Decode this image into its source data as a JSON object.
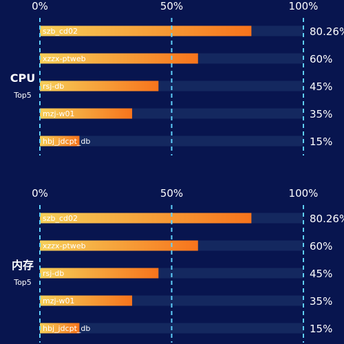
{
  "colors": {
    "background": "#08154f",
    "track": "#14285f",
    "bar_start": "#f6cf59",
    "bar_end": "#f7741c",
    "gridline": "#5fd1ff",
    "text": "#ffffff"
  },
  "chart_data": [
    {
      "type": "bar",
      "orientation": "horizontal",
      "side_title": "CPU",
      "side_subtitle": "Top5",
      "xlim": [
        0,
        100
      ],
      "x_ticks": [
        "0%",
        "50%",
        "100%"
      ],
      "categories": [
        "szb_cd02",
        "xzzx-ptweb",
        "rsj-db",
        "mzj-w01",
        "hbj_jdcpt_db"
      ],
      "values": [
        80.26,
        60,
        45,
        35,
        15
      ],
      "value_labels": [
        "80.26%",
        "60%",
        "45%",
        "35%",
        "15%"
      ],
      "grid": "vertical dashed lines at 0%, 50%, 100%",
      "legend": "none"
    },
    {
      "type": "bar",
      "orientation": "horizontal",
      "side_title": "内存",
      "side_subtitle": "Top5",
      "xlim": [
        0,
        100
      ],
      "x_ticks": [
        "0%",
        "50%",
        "100%"
      ],
      "categories": [
        "szb_cd02",
        "xzzx-ptweb",
        "rsj-db",
        "mzj-w01",
        "hbj_jdcpt_db"
      ],
      "values": [
        80.26,
        60,
        45,
        35,
        15
      ],
      "value_labels": [
        "80.26%",
        "60%",
        "45%",
        "35%",
        "15%"
      ],
      "grid": "vertical dashed lines at 0%, 50%, 100%",
      "legend": "none"
    }
  ]
}
